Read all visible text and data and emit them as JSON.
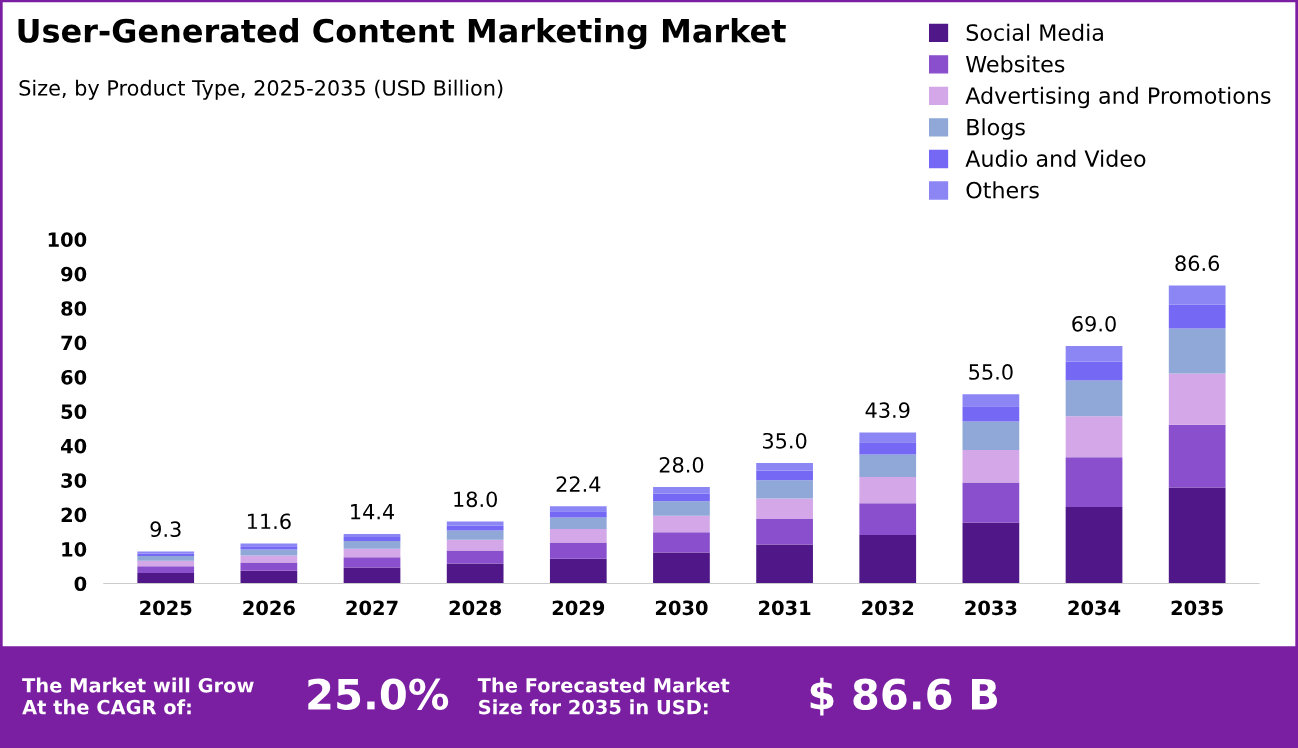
{
  "chart_data": {
    "type": "bar",
    "stacked": true,
    "title": "User-Generated Content Marketing Market",
    "subtitle": "Size, by Product Type, 2025-2035 (USD Billion)",
    "categories": [
      "2025",
      "2026",
      "2027",
      "2028",
      "2029",
      "2030",
      "2031",
      "2032",
      "2033",
      "2034",
      "2035"
    ],
    "series": [
      {
        "name": "Social Media",
        "color": "#4f1787",
        "values": [
          3.0,
          3.7,
          4.6,
          5.8,
          7.2,
          9.0,
          11.3,
          14.1,
          17.7,
          22.2,
          27.9
        ]
      },
      {
        "name": "Websites",
        "color": "#8a4fcc",
        "values": [
          2.0,
          2.4,
          3.0,
          3.8,
          4.7,
          5.9,
          7.4,
          9.2,
          11.6,
          14.5,
          18.2
        ]
      },
      {
        "name": "Advertising and Promotions",
        "color": "#d4a8e8",
        "values": [
          1.6,
          2.0,
          2.5,
          3.1,
          3.9,
          4.8,
          6.0,
          7.6,
          9.5,
          11.9,
          14.9
        ]
      },
      {
        "name": "Blogs",
        "color": "#8fa8d8",
        "values": [
          1.4,
          1.8,
          2.2,
          2.7,
          3.4,
          4.2,
          5.3,
          6.6,
          8.3,
          10.4,
          13.1
        ]
      },
      {
        "name": "Audio and Video",
        "color": "#7468f5",
        "values": [
          0.7,
          0.9,
          1.2,
          1.4,
          1.8,
          2.2,
          2.8,
          3.5,
          4.4,
          5.5,
          6.9
        ]
      },
      {
        "name": "Others",
        "color": "#8c86f5",
        "values": [
          0.6,
          0.8,
          0.9,
          1.2,
          1.4,
          1.9,
          2.2,
          2.9,
          3.5,
          4.5,
          5.6
        ]
      }
    ],
    "totals": [
      "9.3",
      "11.6",
      "14.4",
      "18.0",
      "22.4",
      "28.0",
      "35.0",
      "43.9",
      "55.0",
      "69.0",
      "86.6"
    ],
    "ylim": [
      0,
      100
    ],
    "yticks": [
      0,
      10,
      20,
      30,
      40,
      50,
      60,
      70,
      80,
      90,
      100
    ],
    "grid": false,
    "legend": "top right",
    "annotations": [
      "The Market will Grow\nAt the CAGR of:",
      "25.0%",
      "The Forecasted Market\nSize for 2035 in USD:",
      "$ 86.6 B"
    ]
  }
}
